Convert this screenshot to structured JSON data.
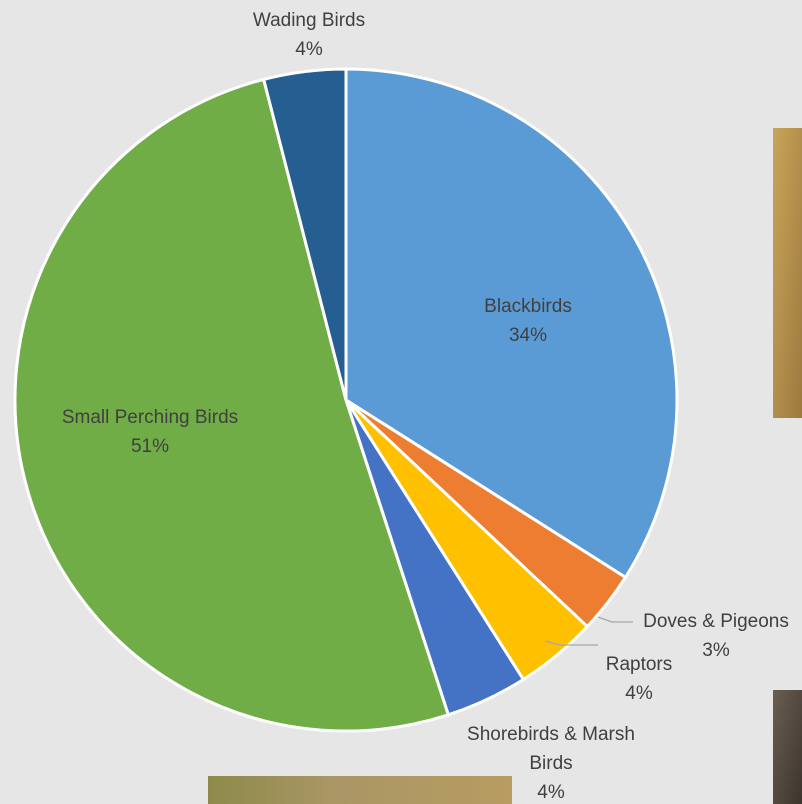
{
  "chart_data": {
    "type": "pie",
    "categories": [
      "Blackbirds",
      "Doves & Pigeons",
      "Raptors",
      "Shorebirds & Marsh Birds",
      "Small Perching Birds",
      "Wading Birds"
    ],
    "values": [
      34,
      3,
      4,
      4,
      51,
      4
    ],
    "value_labels": [
      "34%",
      "3%",
      "4%",
      "4%",
      "51%",
      "4%"
    ],
    "colors": [
      "#5b9bd5",
      "#ed7d31",
      "#ffc000",
      "#4472c4",
      "#70ad47",
      "#255e91"
    ]
  }
}
